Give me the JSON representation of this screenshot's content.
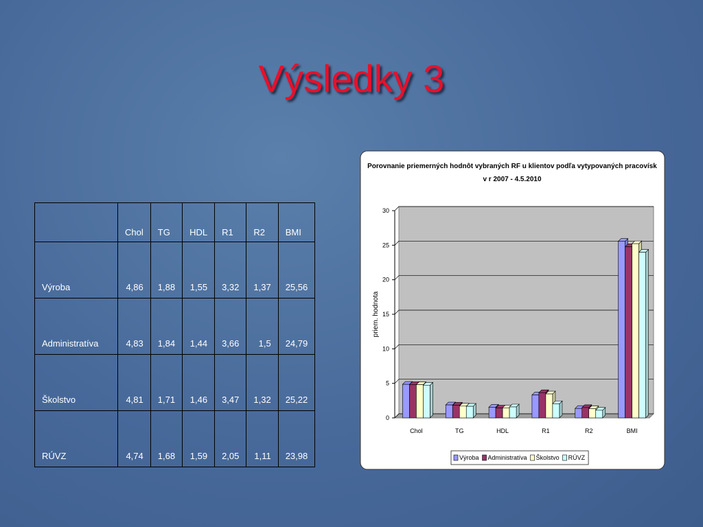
{
  "slide_title": "Výsledky 3",
  "table": {
    "columns": [
      "Chol",
      "TG",
      "HDL",
      "R1",
      "R2",
      "BMI"
    ],
    "rows": [
      {
        "label": "Výroba",
        "cells": [
          "4,86",
          "1,88",
          "1,55",
          "3,32",
          "1,37",
          "25,56"
        ]
      },
      {
        "label": "Administratíva",
        "cells": [
          "4,83",
          "1,84",
          "1,44",
          "3,66",
          "1,5",
          "24,79"
        ]
      },
      {
        "label": "Školstvo",
        "cells": [
          "4,81",
          "1,71",
          "1,46",
          "3,47",
          "1,32",
          "25,22"
        ]
      },
      {
        "label": "RÚVZ",
        "cells": [
          "4,74",
          "1,68",
          "1,59",
          "2,05",
          "1,11",
          "23,98"
        ]
      }
    ]
  },
  "chart_data": {
    "type": "bar",
    "title": "Porovnanie priemerných hodnôt vybraných RF u klientov podľa vytypovaných pracovísk",
    "subtitle": "v r 2007 - 4.5.2010",
    "y_label": "priem. hodnota",
    "categories": [
      "Chol",
      "TG",
      "HDL",
      "R1",
      "R2",
      "BMI"
    ],
    "series": [
      {
        "name": "Výroba",
        "color": "#9999ff",
        "values": [
          4.86,
          1.88,
          1.55,
          3.32,
          1.37,
          25.56
        ]
      },
      {
        "name": "Administratíva",
        "color": "#993366",
        "values": [
          4.83,
          1.84,
          1.44,
          3.66,
          1.5,
          24.79
        ]
      },
      {
        "name": "Školstvo",
        "color": "#ffffcc",
        "values": [
          4.81,
          1.71,
          1.46,
          3.47,
          1.32,
          25.22
        ]
      },
      {
        "name": "RÚVZ",
        "color": "#ccffff",
        "values": [
          4.74,
          1.68,
          1.59,
          2.05,
          1.11,
          23.98
        ]
      }
    ],
    "ylim": [
      0,
      30
    ],
    "yticks": [
      0,
      5,
      10,
      15,
      20,
      25,
      30
    ],
    "grid": true,
    "legend": "bottom"
  }
}
